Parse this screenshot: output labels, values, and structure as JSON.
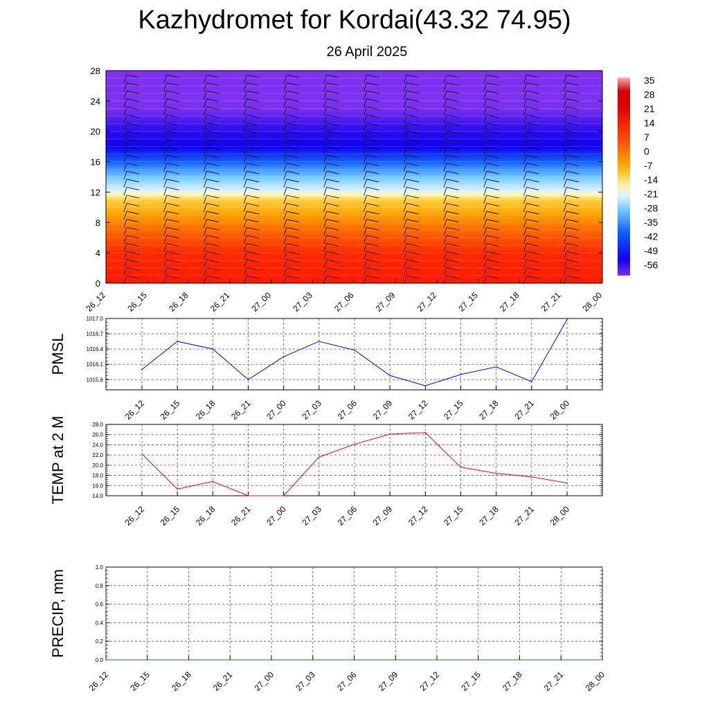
{
  "header": {
    "title": "Kazhydromet for Kordai(43.32 74.95)",
    "subtitle": "26 April 2025"
  },
  "colors": {
    "pmsl_line": "#0000ff",
    "temp_line": "#ff0000",
    "precip_line": "#008000"
  },
  "chart_data": [
    {
      "type": "heatmap",
      "title": "",
      "xlabel": "",
      "ylabel": "",
      "x_ticks": [
        "26_12",
        "26_15",
        "26_18",
        "26_21",
        "27_00",
        "27_03",
        "27_06",
        "27_09",
        "27_12",
        "27_15",
        "27_18",
        "27_21",
        "28_00"
      ],
      "y_ticks": [
        0,
        4,
        8,
        12,
        16,
        20,
        24,
        28
      ],
      "ylim": [
        0,
        28
      ],
      "colorbar_labels": [
        35,
        28,
        21,
        14,
        7,
        0,
        -7,
        -14,
        -21,
        -28,
        -35,
        -42,
        -49,
        -56
      ],
      "overlay": "wind barbs",
      "color_stops": [
        {
          "level": 0,
          "color": "#ff1a00"
        },
        {
          "level": 4,
          "color": "#ff2a00"
        },
        {
          "level": 7,
          "color": "#ff6a00"
        },
        {
          "level": 9,
          "color": "#ffa000"
        },
        {
          "level": 11,
          "color": "#ffd040"
        },
        {
          "level": 11.6,
          "color": "#fff8b0"
        },
        {
          "level": 12.2,
          "color": "#e0f2ff"
        },
        {
          "level": 14,
          "color": "#70c8ff"
        },
        {
          "level": 16,
          "color": "#1060ff"
        },
        {
          "level": 18,
          "color": "#1000f0"
        },
        {
          "level": 20.5,
          "color": "#3410f0"
        },
        {
          "level": 23,
          "color": "#7a30f0"
        },
        {
          "level": 28,
          "color": "#8030f0"
        }
      ]
    },
    {
      "type": "line",
      "ylabel": "PMSL",
      "categories": [
        "26_12",
        "26_15",
        "26_18",
        "26_21",
        "27_00",
        "27_03",
        "27_06",
        "27_09",
        "27_12",
        "27_15",
        "27_18",
        "27_21",
        "28_00"
      ],
      "y_ticks": [
        "1015.8",
        "1016.1",
        "1016.4",
        "1016.7",
        "1017.0"
      ],
      "ylim": [
        1015.6,
        1017.0
      ],
      "grid": true,
      "series": [
        {
          "values": [
            1016.0,
            1016.55,
            1016.4,
            1015.8,
            1016.25,
            1016.55,
            1016.38,
            1015.88,
            1015.68,
            1015.9,
            1016.05,
            1015.76,
            1016.98
          ]
        }
      ]
    },
    {
      "type": "line",
      "ylabel": "TEMP at 2 M",
      "categories": [
        "26_12",
        "26_15",
        "26_18",
        "26_21",
        "27_00",
        "27_03",
        "27_06",
        "27_09",
        "27_12",
        "27_15",
        "27_18",
        "27_21",
        "28_00"
      ],
      "y_ticks": [
        "14.0",
        "16.0",
        "18.0",
        "20.0",
        "22.0",
        "24.0",
        "26.0",
        "28.0"
      ],
      "ylim": [
        14.0,
        28.0
      ],
      "grid": true,
      "series": [
        {
          "values": [
            22.2,
            15.3,
            16.8,
            14.0,
            14.0,
            21.6,
            24.1,
            26.1,
            26.4,
            19.6,
            18.4,
            17.7,
            16.5
          ]
        }
      ]
    },
    {
      "type": "line",
      "ylabel": "PRECIP, mm",
      "categories": [
        "26_12",
        "26_15",
        "26_18",
        "26_21",
        "27_00",
        "27_03",
        "27_06",
        "27_09",
        "27_12",
        "27_15",
        "27_18",
        "27_21",
        "28_00"
      ],
      "y_ticks": [
        "0.0",
        "0.2",
        "0.4",
        "0.6",
        "0.8",
        "1.0"
      ],
      "ylim": [
        0.0,
        1.0
      ],
      "grid": true,
      "series": [
        {
          "values": [
            0,
            0,
            0,
            0,
            0,
            0,
            0,
            0,
            0,
            0,
            0,
            0,
            0
          ]
        }
      ]
    }
  ]
}
